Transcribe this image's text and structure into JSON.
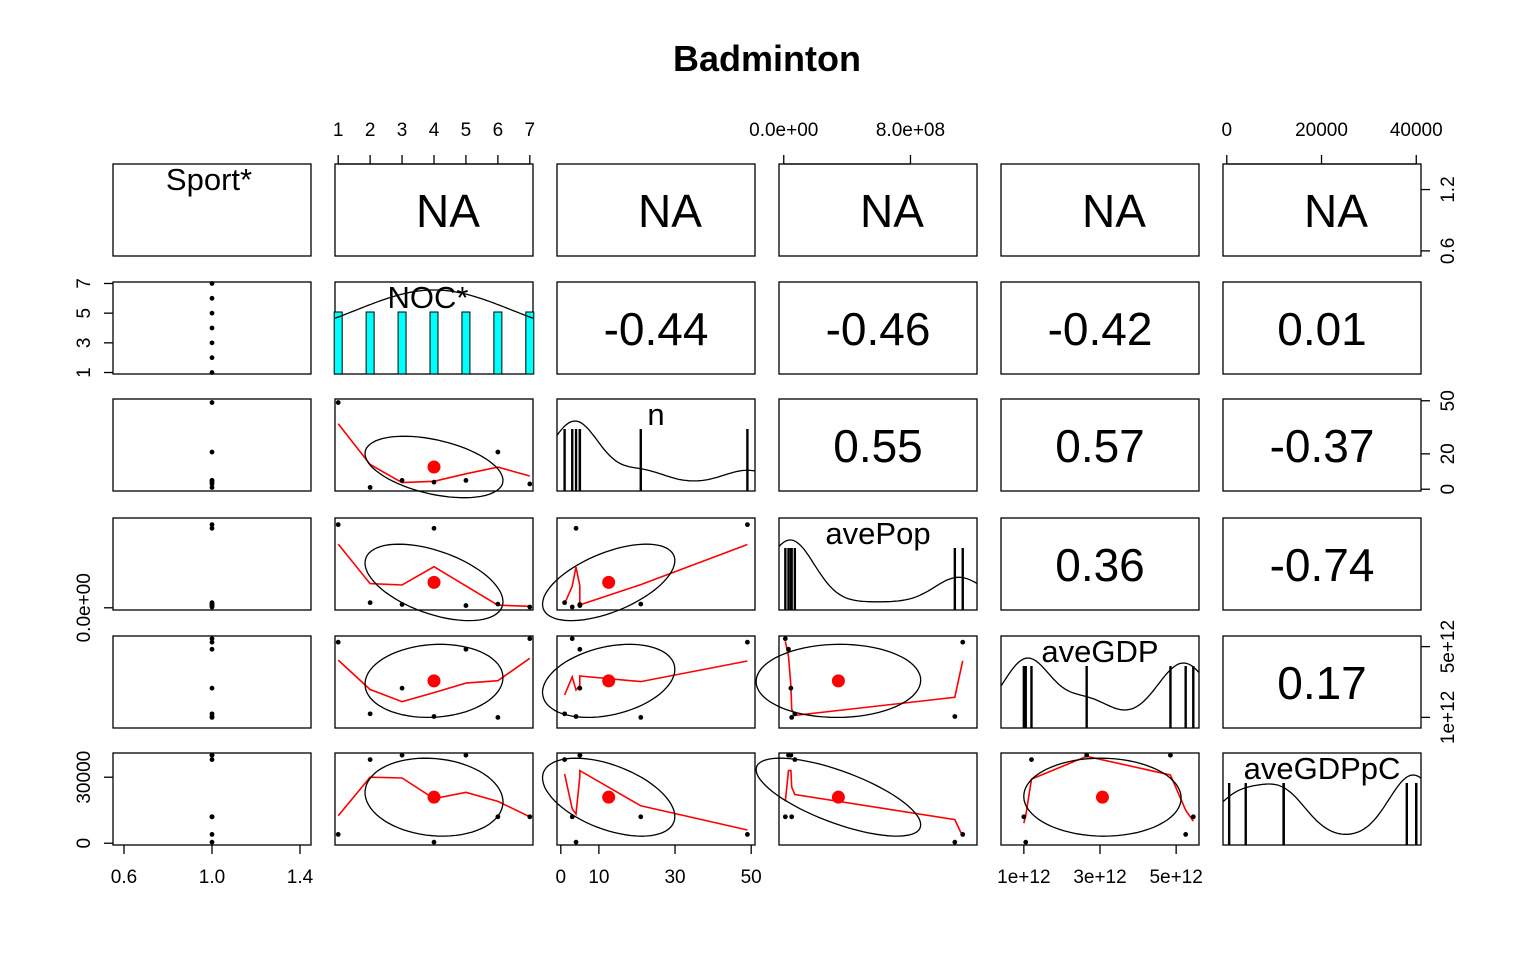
{
  "chart_data": {
    "type": "scatter-matrix",
    "title": "Badminton",
    "variables": [
      "Sport*",
      "NOC*",
      "n",
      "avePop",
      "aveGDP",
      "aveGDPpC"
    ],
    "correlations": [
      {
        "row": 0,
        "col": 1,
        "text": "NA"
      },
      {
        "row": 0,
        "col": 2,
        "text": "NA"
      },
      {
        "row": 0,
        "col": 3,
        "text": "NA"
      },
      {
        "row": 0,
        "col": 4,
        "text": "NA"
      },
      {
        "row": 0,
        "col": 5,
        "text": "NA"
      },
      {
        "row": 1,
        "col": 2,
        "text": "-0.44"
      },
      {
        "row": 1,
        "col": 3,
        "text": "-0.46"
      },
      {
        "row": 1,
        "col": 4,
        "text": "-0.42"
      },
      {
        "row": 1,
        "col": 5,
        "text": "0.01"
      },
      {
        "row": 2,
        "col": 3,
        "text": "0.55"
      },
      {
        "row": 2,
        "col": 4,
        "text": "0.57"
      },
      {
        "row": 2,
        "col": 5,
        "text": "-0.37"
      },
      {
        "row": 3,
        "col": 4,
        "text": "0.36"
      },
      {
        "row": 3,
        "col": 5,
        "text": "-0.74"
      },
      {
        "row": 4,
        "col": 5,
        "text": "0.17"
      }
    ],
    "axes": {
      "top": [
        {
          "col": 1,
          "ticks": [
            "1",
            "2",
            "3",
            "4",
            "5",
            "6",
            "7"
          ]
        },
        {
          "col": 3,
          "ticks": [
            "0.0e+00",
            "8.0e+08"
          ]
        },
        {
          "col": 5,
          "ticks": [
            "0",
            "20000",
            "40000"
          ]
        }
      ],
      "bottom": [
        {
          "col": 0,
          "ticks": [
            "0.6",
            "1.0",
            "1.4"
          ]
        },
        {
          "col": 2,
          "ticks": [
            "0",
            "10",
            "30",
            "50"
          ]
        },
        {
          "col": 4,
          "ticks": [
            "1e+12",
            "3e+12",
            "5e+12"
          ]
        }
      ],
      "left": [
        {
          "row": 1,
          "ticks": [
            "1",
            "3",
            "5",
            "7"
          ]
        },
        {
          "row": 3,
          "ticks": [
            "0.0e+00"
          ]
        },
        {
          "row": 5,
          "ticks": [
            "0",
            "30000"
          ]
        }
      ],
      "right": [
        {
          "row": 0,
          "ticks": [
            "0.6",
            "1.2"
          ]
        },
        {
          "row": 2,
          "ticks": [
            "0",
            "20",
            "50"
          ]
        },
        {
          "row": 4,
          "ticks": [
            "1e+12",
            "5e+12"
          ]
        }
      ]
    },
    "ranges": {
      "Sport*": [
        0.55,
        1.45
      ],
      "NOC*": [
        0.9,
        7.1
      ],
      "n": [
        -1,
        51
      ],
      "avePop": [
        -30000000.0,
        1220000000.0
      ],
      "aveGDP": [
        400000000000.0,
        5600000000000.0
      ],
      "aveGDPpC": [
        -800,
        41000
      ]
    },
    "observations": {
      "Sport*": [
        1,
        1,
        1,
        1,
        1,
        1,
        1
      ],
      "NOC*": [
        1,
        2,
        3,
        4,
        5,
        6,
        7
      ],
      "n": [
        49,
        1,
        5,
        4,
        5,
        21,
        3
      ],
      "avePop": [
        1130000000.0,
        70000000.0,
        45000000.0,
        1080000000.0,
        30000000.0,
        50000000.0,
        10000000.0
      ],
      "aveGDP": [
        5250000000000.0,
        1200000000000.0,
        2650000000000.0,
        1050000000000.0,
        4850000000000.0,
        1000000000000.0,
        5450000000000.0
      ],
      "aveGDPpC": [
        4000,
        38000,
        40000,
        500,
        40000,
        12000,
        12000
      ]
    },
    "histogram": {
      "variable": "NOC*",
      "bar_values": [
        1,
        1,
        1,
        1,
        1,
        1,
        1
      ],
      "color": "#00FFFF"
    },
    "colors": {
      "points": "#000000",
      "smooth": "#FF0000",
      "ellipse": "#000000",
      "center": "#FF0000"
    }
  }
}
